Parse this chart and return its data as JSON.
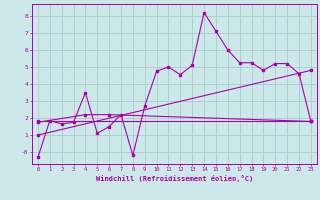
{
  "bg_color": "#cce8e8",
  "grid_color": "#aacccc",
  "line_color": "#aa00aa",
  "xlabel": "Windchill (Refroidissement éolien,°C)",
  "xlim": [
    -0.5,
    23.5
  ],
  "ylim": [
    -0.7,
    8.7
  ],
  "yticks": [
    0,
    1,
    2,
    3,
    4,
    5,
    6,
    7,
    8
  ],
  "ytick_labels": [
    "-0",
    "1",
    "2",
    "3",
    "4",
    "5",
    "6",
    "7",
    "8"
  ],
  "xticks": [
    0,
    1,
    2,
    3,
    4,
    5,
    6,
    7,
    8,
    9,
    10,
    11,
    12,
    13,
    14,
    15,
    16,
    17,
    18,
    19,
    20,
    21,
    22,
    23
  ],
  "series1_x": [
    0,
    1,
    2,
    3,
    4,
    5,
    6,
    7,
    8,
    9,
    10,
    11,
    12,
    13,
    14,
    15,
    16,
    17,
    18,
    19,
    20,
    21,
    22,
    23
  ],
  "series1_y": [
    -0.3,
    1.85,
    1.65,
    1.75,
    3.5,
    1.1,
    1.5,
    2.2,
    -0.2,
    2.7,
    4.75,
    5.0,
    4.55,
    5.1,
    8.2,
    7.1,
    6.0,
    5.25,
    5.25,
    4.8,
    5.2,
    5.2,
    4.6,
    1.8
  ],
  "series2_x": [
    0,
    23
  ],
  "series2_y": [
    1.8,
    1.8
  ],
  "series3_x": [
    0,
    4,
    6,
    23
  ],
  "series3_y": [
    1.75,
    2.2,
    2.2,
    1.8
  ],
  "series4_x": [
    0,
    23
  ],
  "series4_y": [
    1.0,
    4.8
  ]
}
